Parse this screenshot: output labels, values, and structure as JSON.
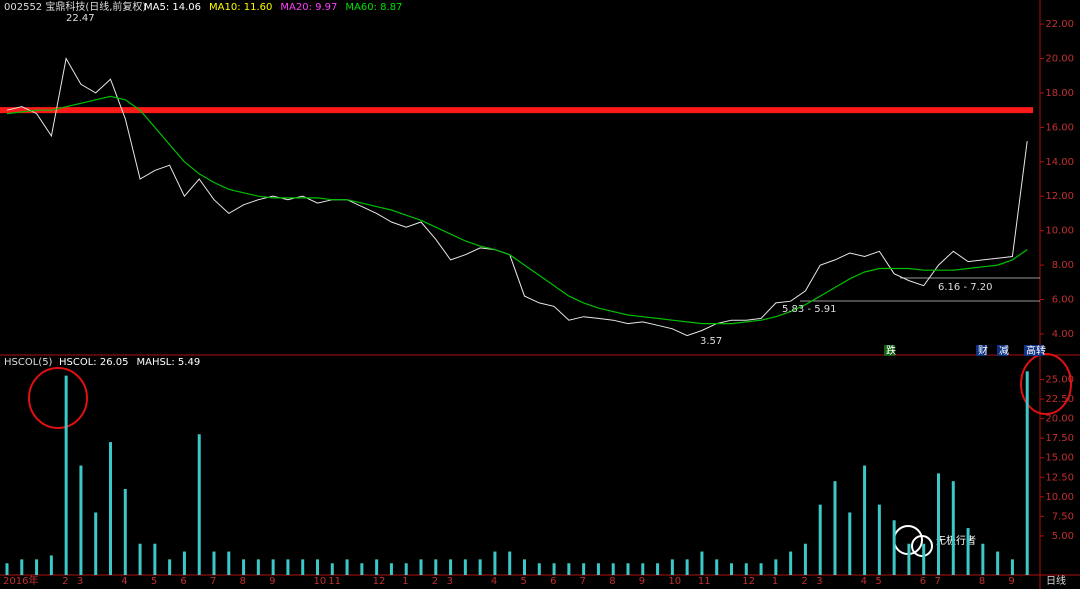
{
  "chart_data": [
    {
      "type": "line",
      "title": "002552 宝鼎科技(日线,前复权)",
      "legend_texts": [
        {
          "text": "MA5: 14.06",
          "color": "#ffffff"
        },
        {
          "text": "MA10: 11.60",
          "color": "#ffff00"
        },
        {
          "text": "MA20: 9.97",
          "color": "#ff40ff"
        },
        {
          "text": "MA60: 8.87",
          "color": "#00e000"
        }
      ],
      "series": [
        {
          "color": "#e8e8e8",
          "values": [
            17.0,
            17.2,
            16.8,
            15.5,
            20.0,
            18.5,
            18.0,
            18.8,
            16.5,
            13.0,
            13.5,
            13.8,
            12.0,
            13.0,
            11.8,
            11.0,
            11.5,
            11.8,
            12.0,
            11.8,
            12.0,
            11.6,
            11.8,
            11.8,
            11.4,
            11.0,
            10.5,
            10.2,
            10.5,
            9.5,
            8.3,
            8.6,
            9.0,
            8.9,
            8.6,
            6.2,
            5.8,
            5.6,
            4.8,
            5.0,
            4.9,
            4.8,
            4.6,
            4.7,
            4.5,
            4.3,
            3.9,
            4.2,
            4.6,
            4.8,
            4.8,
            4.9,
            5.8,
            5.9,
            6.5,
            8.0,
            8.3,
            8.7,
            8.5,
            8.8,
            7.5,
            7.1,
            6.8,
            8.0,
            8.8,
            8.2,
            8.3,
            8.4,
            8.5,
            15.2
          ]
        },
        {
          "color": "#00c000",
          "values": [
            16.8,
            16.9,
            17.0,
            17.0,
            17.2,
            17.4,
            17.6,
            17.8,
            17.6,
            17.0,
            16.0,
            15.0,
            14.0,
            13.3,
            12.8,
            12.4,
            12.2,
            12.0,
            11.9,
            11.9,
            11.9,
            11.9,
            11.8,
            11.8,
            11.6,
            11.4,
            11.2,
            10.9,
            10.6,
            10.2,
            9.8,
            9.4,
            9.1,
            8.9,
            8.6,
            8.0,
            7.4,
            6.8,
            6.2,
            5.8,
            5.5,
            5.3,
            5.1,
            5.0,
            4.9,
            4.8,
            4.7,
            4.6,
            4.6,
            4.6,
            4.7,
            4.8,
            5.0,
            5.3,
            5.7,
            6.2,
            6.7,
            7.2,
            7.6,
            7.8,
            7.8,
            7.8,
            7.7,
            7.7,
            7.7,
            7.8,
            7.9,
            8.0,
            8.3,
            8.9
          ]
        }
      ],
      "hline": {
        "value": 17.0,
        "color": "#ff1a1a"
      },
      "annotations": [
        "22.47",
        "3.57",
        "5.83 - 5.91",
        "6.16 - 7.20"
      ],
      "ylim": [
        2.95,
        23.4
      ],
      "yticks": [
        {
          "value": 4,
          "label": "4.00"
        },
        {
          "value": 6,
          "label": "6.00"
        },
        {
          "value": 8,
          "label": "8.00"
        },
        {
          "value": 10,
          "label": "10.00"
        },
        {
          "value": 12,
          "label": "12.00"
        },
        {
          "value": 14,
          "label": "14.00"
        },
        {
          "value": 16,
          "label": "16.00"
        },
        {
          "value": 18,
          "label": "18.00"
        },
        {
          "value": 20,
          "label": "20.00"
        },
        {
          "value": 22,
          "label": "22.00"
        }
      ]
    },
    {
      "type": "bar",
      "title": "HSCOL(5)",
      "legend_texts": [
        {
          "text": "HSCOL: 26.05",
          "color": "#ffffff"
        },
        {
          "text": "MAHSL: 5.49",
          "color": "#ffffff"
        }
      ],
      "categories": [
        "2016年",
        null,
        null,
        null,
        "2",
        "3",
        null,
        null,
        "4",
        null,
        "5",
        null,
        "6",
        null,
        "7",
        null,
        "8",
        null,
        "9",
        null,
        null,
        "10",
        "11",
        null,
        null,
        "12",
        null,
        "1",
        null,
        "2",
        "3",
        null,
        null,
        "4",
        null,
        "5",
        null,
        "6",
        null,
        "7",
        null,
        "8",
        null,
        "9",
        null,
        "10",
        null,
        "11",
        null,
        null,
        "12",
        null,
        "1",
        null,
        "2",
        "3",
        null,
        null,
        "4",
        "5",
        null,
        null,
        "6",
        "7",
        null,
        null,
        "8",
        null,
        "9",
        null
      ],
      "values": [
        1.5,
        2,
        2,
        2.5,
        25.5,
        14,
        8,
        17,
        11,
        4,
        4,
        2,
        3,
        18,
        3,
        3,
        2,
        2,
        2,
        2,
        2,
        2,
        1.5,
        2,
        1.5,
        2,
        1.5,
        1.5,
        2,
        2,
        2,
        2,
        2,
        3,
        3,
        2,
        1.5,
        1.5,
        1.5,
        1.5,
        1.5,
        1.5,
        1.5,
        1.5,
        1.5,
        2,
        2,
        3,
        2,
        1.5,
        1.5,
        1.5,
        2,
        3,
        4,
        9,
        12,
        8,
        14,
        9,
        7,
        4,
        4,
        13,
        12,
        6,
        4,
        3,
        2,
        26.05
      ],
      "color": "#3cc8c8",
      "ylim": [
        0,
        27.5
      ],
      "yticks": [
        {
          "value": 5,
          "label": "5.00"
        },
        {
          "value": 7.5,
          "label": "7.50"
        },
        {
          "value": 10,
          "label": "10.00"
        },
        {
          "value": 12.5,
          "label": "12.50"
        },
        {
          "value": 15,
          "label": "15.00"
        },
        {
          "value": 17.5,
          "label": "17.50"
        },
        {
          "value": 20,
          "label": "20.00"
        },
        {
          "value": 22.5,
          "label": "22.50"
        },
        {
          "value": 25,
          "label": "25.00"
        }
      ]
    }
  ],
  "events": [
    "跌",
    "财",
    "减",
    "高转"
  ],
  "period": "日线",
  "watermark": "无极行者"
}
